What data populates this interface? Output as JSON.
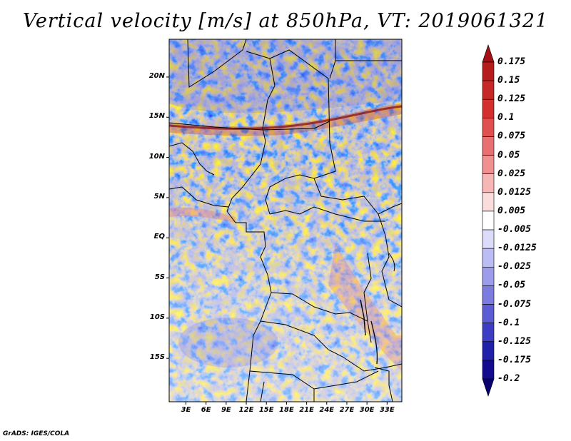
{
  "title": "Vertical velocity [m/s] at 850hPa, VT: 2019061321",
  "footer": "GrADS: IGES/COLA",
  "map": {
    "lat_labels": [
      "20N",
      "15N",
      "10N",
      "5N",
      "EQ",
      "5S",
      "10S",
      "15S"
    ],
    "lat_values": [
      20,
      15,
      10,
      5,
      0,
      -5,
      -10,
      -15
    ],
    "lon_labels": [
      "3E",
      "6E",
      "9E",
      "12E",
      "15E",
      "18E",
      "21E",
      "24E",
      "27E",
      "30E",
      "33E"
    ],
    "lon_values": [
      3,
      6,
      9,
      12,
      15,
      18,
      21,
      24,
      27,
      30,
      33
    ],
    "lon_range": [
      0.5,
      35.2
    ],
    "lat_range": [
      -20.4,
      24.7
    ]
  },
  "colorbar": {
    "levels": [
      "0.175",
      "0.15",
      "0.125",
      "0.1",
      "0.075",
      "0.05",
      "0.025",
      "0.0125",
      "0.005",
      "-0.005",
      "-0.0125",
      "-0.025",
      "-0.05",
      "-0.075",
      "-0.1",
      "-0.125",
      "-0.175",
      "-0.2"
    ],
    "colors": [
      "#a50f15",
      "#b71c1c",
      "#c62828",
      "#d32f2f",
      "#e05050",
      "#e87070",
      "#f09090",
      "#f6b6b6",
      "#fbdcdc",
      "#ffffff",
      "#dcdcfa",
      "#bcbcf4",
      "#9c9cea",
      "#7c7ce0",
      "#5c5cd4",
      "#3c3cc4",
      "#2020aa",
      "#120a8f",
      "#0a0070"
    ]
  }
}
